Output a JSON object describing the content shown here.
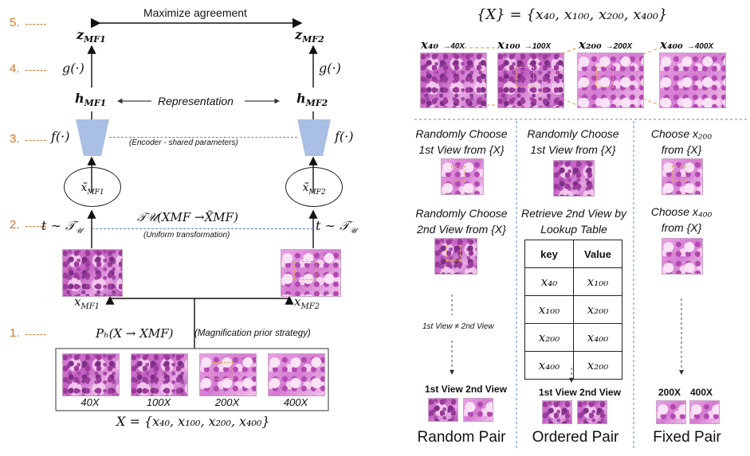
{
  "steps": [
    "5.",
    "4.",
    "3.",
    "2.",
    "1."
  ],
  "left": {
    "maximize": "Maximize agreement",
    "z1": "z",
    "z1_sub": "MF1",
    "z2": "z",
    "z2_sub": "MF2",
    "g1": "g(·)",
    "g2": "g(·)",
    "h1": "h",
    "h1_sub": "MF1",
    "h2": "h",
    "h2_sub": "MF2",
    "representation": "Representation",
    "f1": "f(·)",
    "f2": "f(·)",
    "encoder_note": "(Encoder - shared parameters)",
    "x1_tilde": "x̃",
    "x1_tilde_sub": "MF1",
    "x2_tilde": "x̃",
    "x2_tilde_sub": "MF2",
    "t1": "t ∼ 𝒯",
    "t1_sub": "𝒰",
    "t2": "t ∼ 𝒯",
    "t2_sub": "𝒰",
    "transform_formula": "𝒯𝒰(XMF →X̃MF)",
    "transform_note": "(Uniform transformation)",
    "xmf1": "x",
    "xmf1_sub": "MF1",
    "xmf2": "x",
    "xmf2_sub": "MF2",
    "prior_formula": "Pₕ(X → XMF)",
    "prior_note": "(Magnification prior strategy)",
    "mags": [
      "40X",
      "100X",
      "200X",
      "400X"
    ],
    "set_formula": "X = {x₄₀, x₁₀₀, x₂₀₀, x₄₀₀}"
  },
  "right": {
    "set_formula": "{X} = {x₄₀, x₁₀₀, x₂₀₀, x₄₀₀}",
    "top_labels": [
      {
        "math": "x₄₀",
        "arrow": "→40X"
      },
      {
        "math": "x₁₀₀",
        "arrow": "→100X"
      },
      {
        "math": "x₂₀₀",
        "arrow": "→200X"
      },
      {
        "math": "x₄₀₀",
        "arrow": "→400X"
      }
    ],
    "random": {
      "choose1_a": "Randomly Choose",
      "choose1_b": "1st View from {X}",
      "choose2_a": "Randomly Choose",
      "choose2_b": "2nd View from {X}",
      "neq": "1st View ≠ 2nd View",
      "pair_header": "1st View 2nd View",
      "label": "Random Pair"
    },
    "ordered": {
      "choose1_a": "Randomly Choose",
      "choose1_b": "1st View from {X}",
      "retrieve_a": "Retrieve 2nd View by",
      "retrieve_b": "Lookup Table",
      "table_header": [
        "key",
        "Value"
      ],
      "table_rows": [
        [
          "x₄₀",
          "x₁₀₀"
        ],
        [
          "x₁₀₀",
          "x₂₀₀"
        ],
        [
          "x₂₀₀",
          "x₄₀₀"
        ],
        [
          "x₄₀₀",
          "x₂₀₀"
        ]
      ],
      "pair_header": "1st View 2nd View",
      "label": "Ordered Pair"
    },
    "fixed": {
      "choose1_a": "Choose x₂₀₀",
      "choose1_b": "from {X}",
      "choose2_a": "Choose x₄₀₀",
      "choose2_b": "from {X}",
      "pair_header_a": "200X",
      "pair_header_b": "400X",
      "label": "Fixed Pair"
    }
  }
}
